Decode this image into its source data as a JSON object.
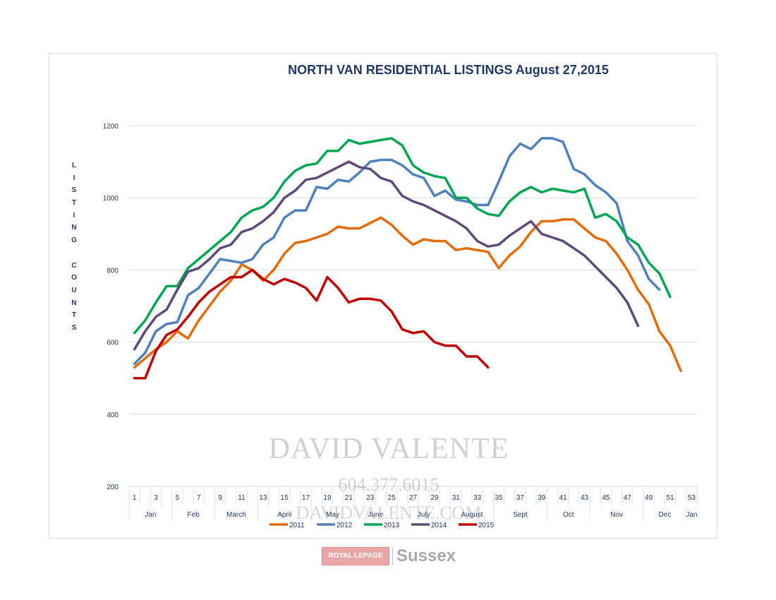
{
  "chart_data": {
    "type": "line",
    "title": "NORTH VAN RESIDENTIAL LISTINGS August 27,2015",
    "ylabel": "LISTING COUNTS",
    "xlabel": "",
    "ylim": [
      200,
      1200
    ],
    "yticks": [
      200,
      400,
      600,
      800,
      1000,
      1200
    ],
    "xlim": [
      1,
      53
    ],
    "xticks": [
      "1",
      "3",
      "5",
      "7",
      "9",
      "11",
      "13",
      "15",
      "17",
      "19",
      "21",
      "23",
      "25",
      "27",
      "29",
      "31",
      "33",
      "35",
      "37",
      "39",
      "41",
      "43",
      "45",
      "47",
      "49",
      "51",
      "53"
    ],
    "months": [
      {
        "label": "Jan",
        "start": 1,
        "end": 5
      },
      {
        "label": "Feb",
        "start": 5,
        "end": 9
      },
      {
        "label": "March",
        "start": 9,
        "end": 13
      },
      {
        "label": "April",
        "start": 13,
        "end": 18
      },
      {
        "label": "May",
        "start": 18,
        "end": 22
      },
      {
        "label": "June",
        "start": 22,
        "end": 26
      },
      {
        "label": "July",
        "start": 26,
        "end": 31
      },
      {
        "label": "August",
        "start": 31,
        "end": 35
      },
      {
        "label": "Sept",
        "start": 35,
        "end": 40
      },
      {
        "label": "Oct",
        "start": 40,
        "end": 44
      },
      {
        "label": "Nov",
        "start": 44,
        "end": 49
      },
      {
        "label": "Dec",
        "start": 49,
        "end": 53
      },
      {
        "label": "Jan",
        "start": 53,
        "end": 54
      }
    ],
    "grid": true,
    "legend_position": "bottom",
    "series": [
      {
        "name": "2011",
        "color": "#e36c0a",
        "x_start": 1,
        "values": [
          530,
          555,
          580,
          600,
          630,
          610,
          660,
          700,
          740,
          770,
          815,
          800,
          770,
          800,
          845,
          875,
          880,
          890,
          900,
          920,
          915,
          915,
          930,
          945,
          925,
          895,
          870,
          885,
          880,
          880,
          855,
          860,
          855,
          850,
          805,
          840,
          865,
          905,
          935,
          935,
          940,
          940,
          915,
          890,
          880,
          845,
          800,
          745,
          705,
          630,
          590,
          520
        ]
      },
      {
        "name": "2012",
        "color": "#4f81bd",
        "x_start": 1,
        "values": [
          540,
          570,
          630,
          650,
          655,
          730,
          750,
          790,
          830,
          825,
          820,
          830,
          870,
          890,
          945,
          965,
          965,
          1030,
          1025,
          1050,
          1045,
          1070,
          1100,
          1105,
          1105,
          1090,
          1065,
          1055,
          1005,
          1020,
          995,
          990,
          980,
          980,
          1045,
          1115,
          1150,
          1135,
          1165,
          1165,
          1155,
          1080,
          1065,
          1035,
          1015,
          985,
          880,
          840,
          775,
          745
        ]
      },
      {
        "name": "2013",
        "color": "#00a651",
        "x_start": 1,
        "values": [
          625,
          660,
          710,
          755,
          755,
          805,
          830,
          855,
          880,
          905,
          945,
          965,
          975,
          1000,
          1045,
          1075,
          1090,
          1095,
          1130,
          1130,
          1160,
          1150,
          1155,
          1160,
          1165,
          1145,
          1090,
          1070,
          1060,
          1055,
          1000,
          1000,
          970,
          955,
          950,
          990,
          1015,
          1030,
          1015,
          1025,
          1020,
          1015,
          1025,
          945,
          955,
          935,
          890,
          870,
          820,
          790,
          725
        ]
      },
      {
        "name": "2014",
        "color": "#604a7b",
        "x_start": 1,
        "values": [
          580,
          630,
          670,
          690,
          745,
          795,
          805,
          830,
          860,
          870,
          905,
          915,
          935,
          960,
          1000,
          1020,
          1050,
          1055,
          1070,
          1085,
          1100,
          1085,
          1080,
          1055,
          1045,
          1005,
          990,
          980,
          965,
          950,
          935,
          915,
          880,
          865,
          870,
          895,
          915,
          935,
          900,
          890,
          880,
          860,
          840,
          810,
          780,
          750,
          710,
          645
        ]
      },
      {
        "name": "2015",
        "color": "#c00000",
        "x_start": 1,
        "values": [
          500,
          500,
          575,
          620,
          635,
          670,
          710,
          740,
          760,
          780,
          780,
          800,
          775,
          760,
          775,
          765,
          750,
          715,
          780,
          750,
          710,
          720,
          720,
          715,
          685,
          635,
          625,
          630,
          600,
          590,
          590,
          560,
          560,
          530
        ]
      }
    ]
  },
  "watermark": {
    "name": "DAVID VALENTE",
    "phone": "604.377.6015",
    "website": "DAVIDVALENTE.COM"
  },
  "brand": {
    "royal_lepage": "ROYAL LEPAGE",
    "office": "Sussex"
  }
}
